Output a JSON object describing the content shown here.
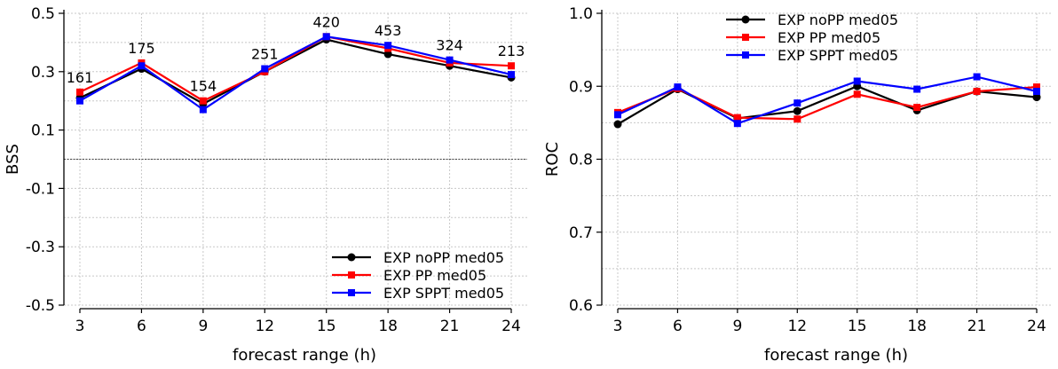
{
  "colors": {
    "EXP noPP med05": "#000000",
    "EXP PP med05": "#ff0000",
    "EXP SPPT med05": "#0000ff",
    "grid": "#c8c8c8",
    "zero_line": "#444444"
  },
  "chart_data": [
    {
      "type": "line",
      "xlabel": "forecast range (h)",
      "ylabel": "BSS",
      "x": [
        3,
        6,
        9,
        12,
        15,
        18,
        21,
        24
      ],
      "xlim": [
        3,
        24
      ],
      "ylim": [
        -0.5,
        0.5
      ],
      "yticks": [
        "-0.5",
        "-0.3",
        "-0.1",
        "0.1",
        "0.3",
        "0.5"
      ],
      "reference_line_y": 0.0,
      "grid": true,
      "legend_position": "bottom-right",
      "series": [
        {
          "name": "EXP noPP med05",
          "color": "#000000",
          "marker": "circle",
          "values": [
            0.21,
            0.31,
            0.19,
            0.3,
            0.41,
            0.36,
            0.32,
            0.28
          ]
        },
        {
          "name": "EXP PP med05",
          "color": "#ff0000",
          "marker": "square",
          "values": [
            0.23,
            0.33,
            0.2,
            0.3,
            0.42,
            0.38,
            0.33,
            0.32
          ]
        },
        {
          "name": "EXP SPPT med05",
          "color": "#0000ff",
          "marker": "square",
          "values": [
            0.2,
            0.32,
            0.17,
            0.31,
            0.42,
            0.39,
            0.34,
            0.29
          ]
        }
      ],
      "data_labels": [
        {
          "x": 3,
          "text": "161"
        },
        {
          "x": 6,
          "text": "175"
        },
        {
          "x": 9,
          "text": "154"
        },
        {
          "x": 12,
          "text": "251"
        },
        {
          "x": 15,
          "text": "420"
        },
        {
          "x": 18,
          "text": "453"
        },
        {
          "x": 21,
          "text": "324"
        },
        {
          "x": 24,
          "text": "213"
        }
      ]
    },
    {
      "type": "line",
      "xlabel": "forecast range (h)",
      "ylabel": "ROC",
      "x": [
        3,
        6,
        9,
        12,
        15,
        18,
        21,
        24
      ],
      "xlim": [
        3,
        24
      ],
      "ylim": [
        0.6,
        1.0
      ],
      "yticks": [
        "0.6",
        "0.7",
        "0.8",
        "0.9",
        "1.0"
      ],
      "grid": true,
      "legend_position": "top-right",
      "series": [
        {
          "name": "EXP noPP med05",
          "color": "#000000",
          "marker": "circle",
          "values": [
            0.848,
            0.896,
            0.856,
            0.866,
            0.9,
            0.867,
            0.893,
            0.885
          ]
        },
        {
          "name": "EXP PP med05",
          "color": "#ff0000",
          "marker": "square",
          "values": [
            0.864,
            0.897,
            0.857,
            0.855,
            0.889,
            0.871,
            0.893,
            0.899
          ]
        },
        {
          "name": "EXP SPPT med05",
          "color": "#0000ff",
          "marker": "square",
          "values": [
            0.861,
            0.899,
            0.849,
            0.877,
            0.907,
            0.896,
            0.913,
            0.893
          ]
        }
      ]
    }
  ]
}
